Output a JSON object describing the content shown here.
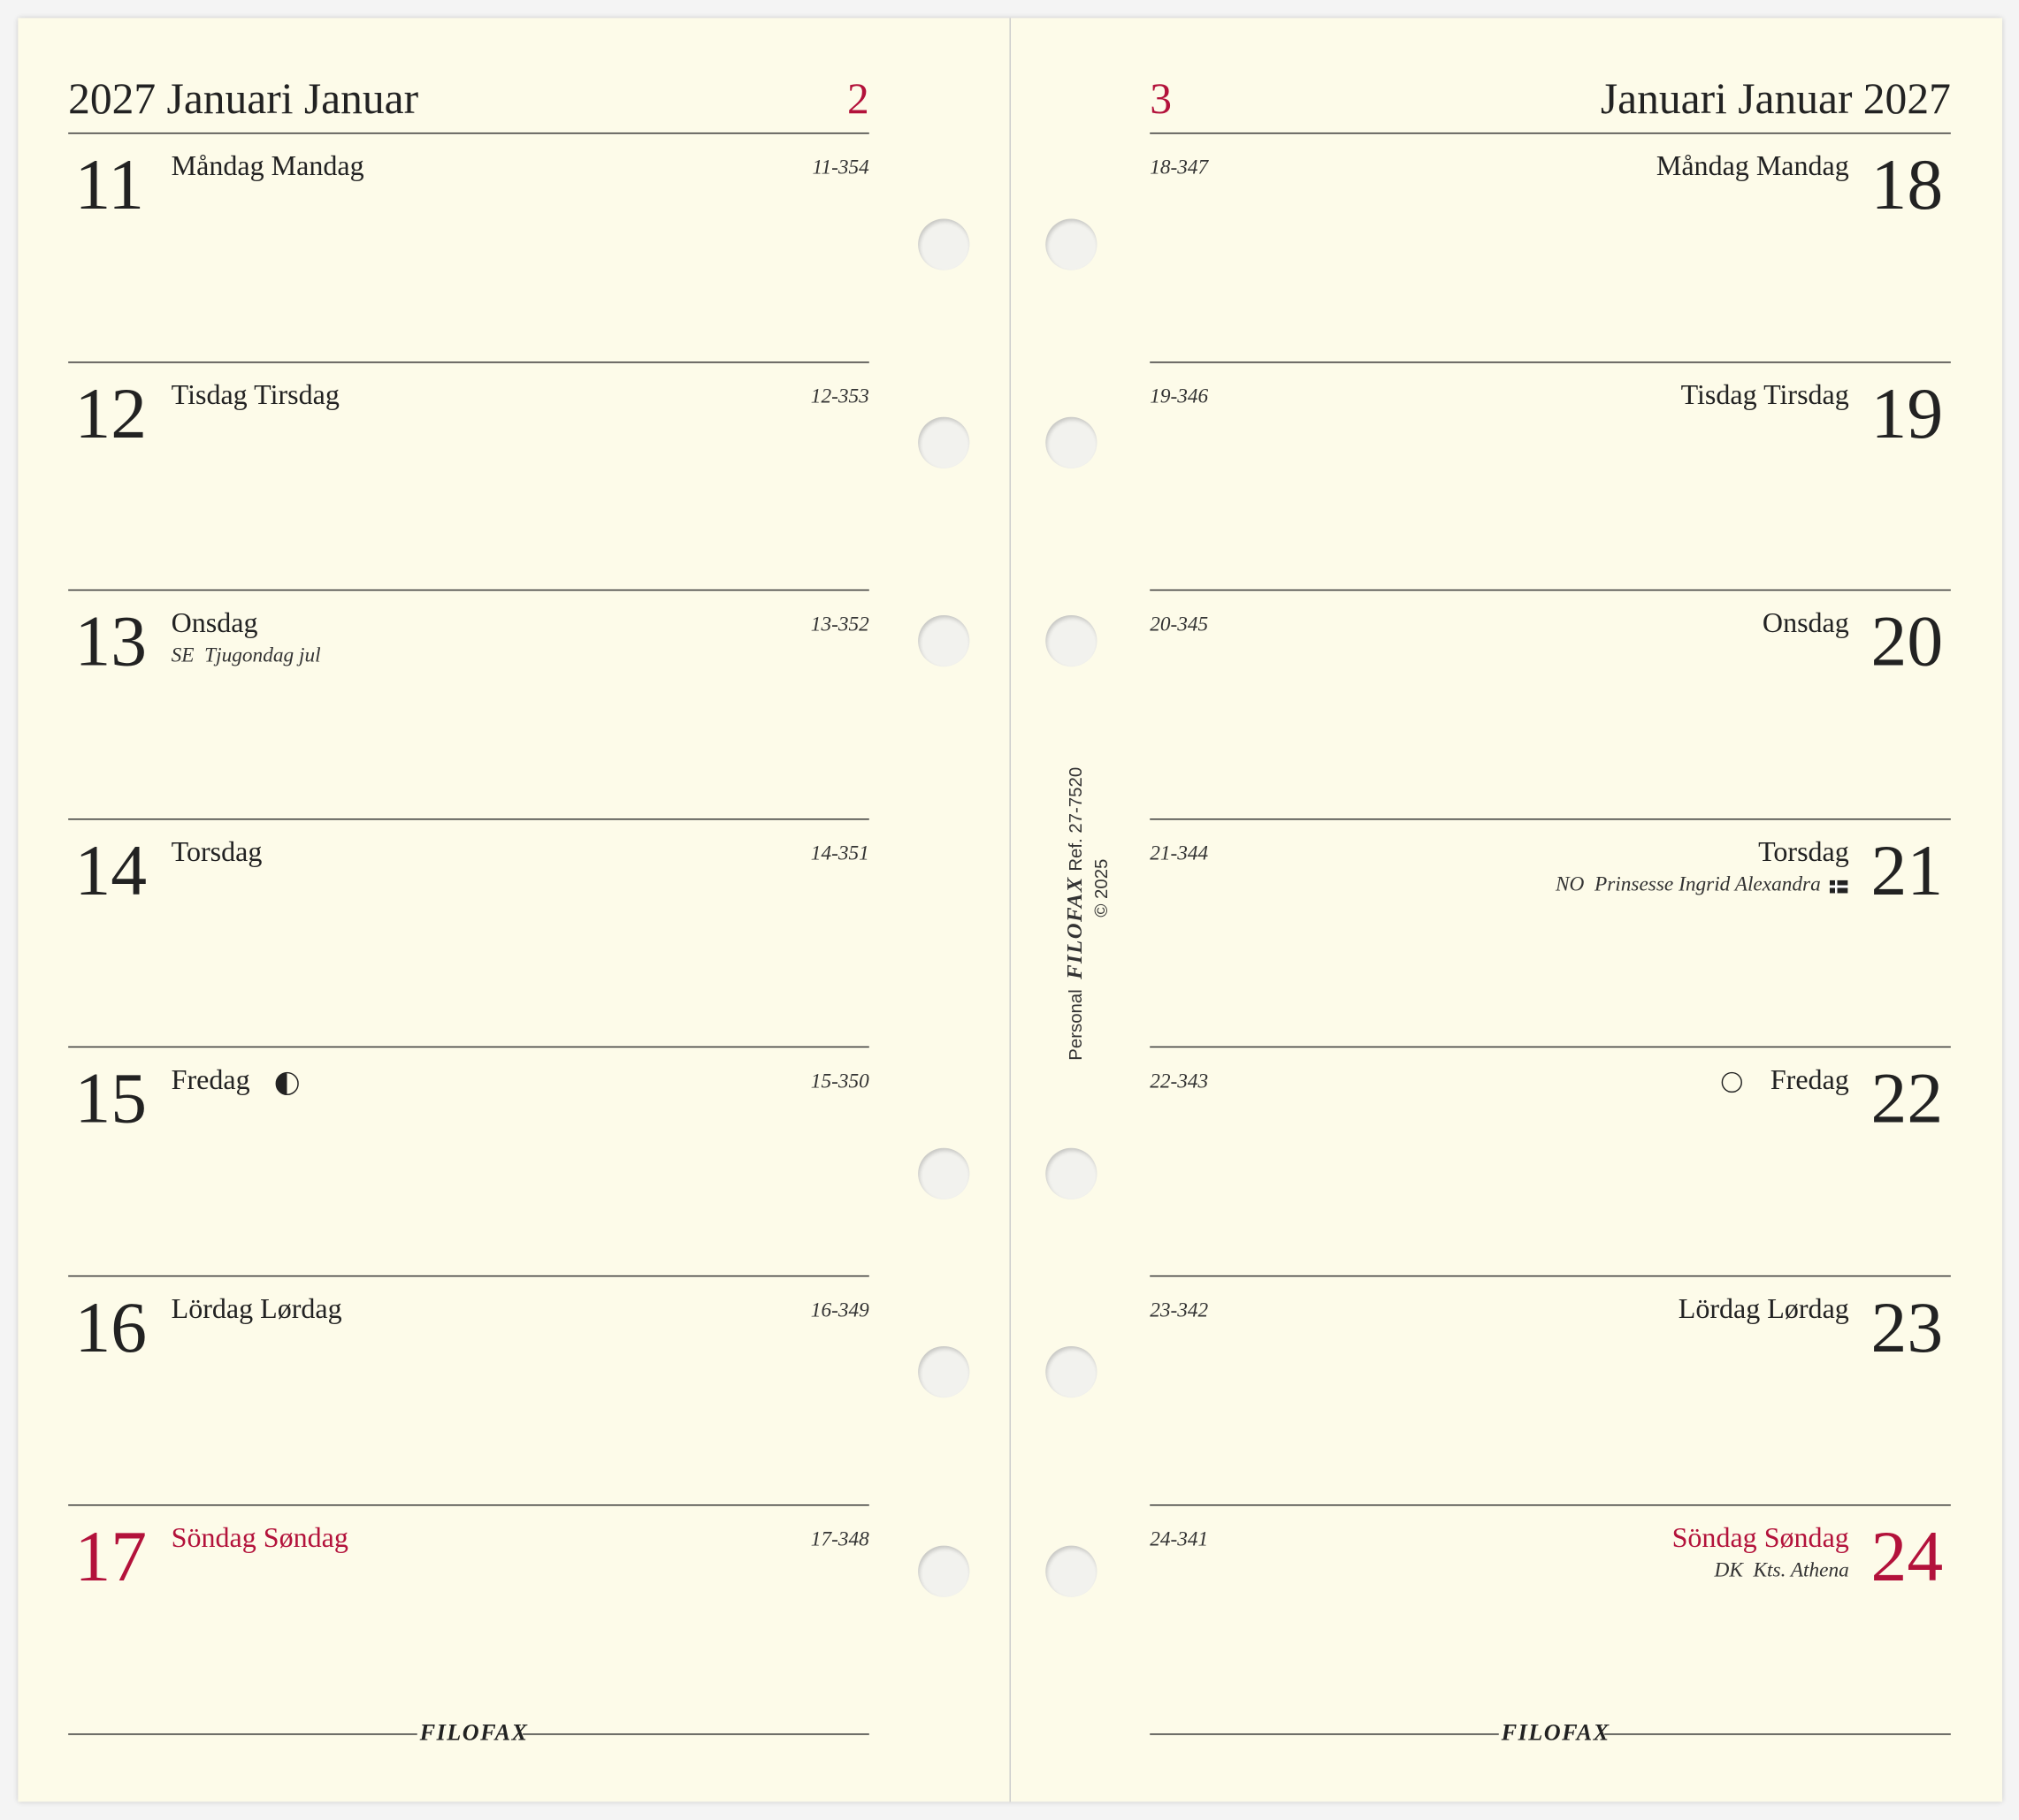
{
  "pages": [
    {
      "header": {
        "title": "2027 Januari Januar",
        "week": "2",
        "week_color": "#b3123b"
      },
      "days": [
        {
          "number": "11",
          "name": "Måndag Mandag",
          "day_count": "11-354"
        },
        {
          "number": "12",
          "name": "Tisdag Tirsdag",
          "day_count": "12-353"
        },
        {
          "number": "13",
          "name": "Onsdag",
          "day_count": "13-352",
          "note": {
            "region": "SE",
            "text": "Tjugondag jul"
          }
        },
        {
          "number": "14",
          "name": "Torsdag",
          "day_count": "14-351"
        },
        {
          "number": "15",
          "name": "Fredag",
          "day_count": "15-350"
        },
        {
          "number": "16",
          "name": "Lördag Lørdag",
          "day_count": "16-349"
        },
        {
          "number": "17",
          "name": "Söndag Søndag",
          "day_count": "17-348",
          "color": "#b3123b"
        }
      ],
      "footer": "FILOFAX"
    },
    {
      "header": {
        "title": "Januari Januar 2027",
        "week": "3",
        "week_color": "#b3123b"
      },
      "days": [
        {
          "number": "18",
          "name": "Måndag Mandag",
          "day_count": "18-347"
        },
        {
          "number": "19",
          "name": "Tisdag Tirsdag",
          "day_count": "19-346"
        },
        {
          "number": "20",
          "name": "Onsdag",
          "day_count": "20-345"
        },
        {
          "number": "21",
          "name": "Torsdag",
          "day_count": "21-344",
          "note": {
            "region": "NO",
            "text": "Prinsesse Ingrid Alexandra"
          }
        },
        {
          "number": "22",
          "name": "Fredag",
          "day_count": "22-343"
        },
        {
          "number": "23",
          "name": "Lördag Lørdag",
          "day_count": "23-342"
        },
        {
          "number": "24",
          "name": "Söndag Søndag",
          "day_count": "24-341",
          "color": "#b3123b",
          "note": {
            "region": "DK",
            "text": "Kts. Athena"
          }
        }
      ],
      "footer": "FILOFAX"
    }
  ],
  "spine": {
    "size": "Personal",
    "brand": "FILOFAX",
    "ref": "Ref. 27-7520",
    "copyright": "© 2025"
  }
}
